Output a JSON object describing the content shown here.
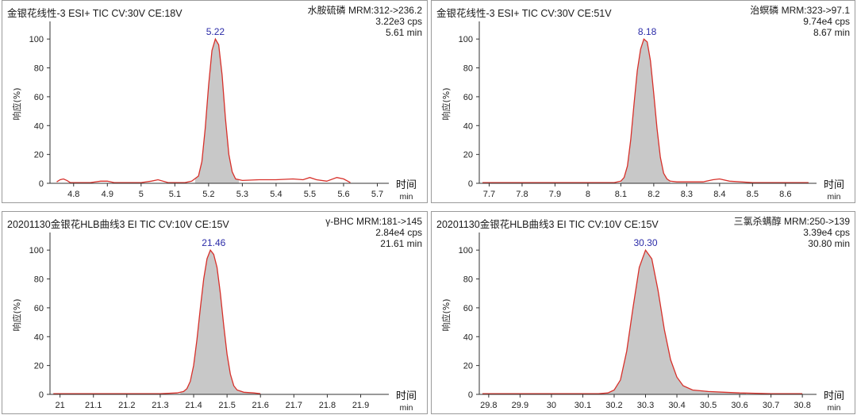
{
  "colors": {
    "trace": "#d7302a",
    "fill": "#c8c8c8",
    "axis": "#333333",
    "peak_label": "#2b2ba8"
  },
  "chart_data": [
    {
      "type": "line",
      "title": "金银花线性-3 ESI+ TIC CV:30V CE:18V",
      "info": [
        "水胺硫磷 MRM:312->236.2",
        "3.22e3 cps",
        "5.61 min"
      ],
      "ylabel": "响应(%)",
      "xlabel_main": "时间",
      "xlabel_unit": "min",
      "xlim": [
        4.73,
        5.72
      ],
      "ylim": [
        0,
        110
      ],
      "xticks": [
        "4.8",
        "4.9",
        "5",
        "5.1",
        "5.2",
        "5.3",
        "5.4",
        "5.5",
        "5.6",
        "5.7"
      ],
      "xtick_values": [
        4.8,
        4.9,
        5.0,
        5.1,
        5.2,
        5.3,
        5.4,
        5.5,
        5.6,
        5.7
      ],
      "yticks": [
        "0",
        "20",
        "40",
        "60",
        "80",
        "100"
      ],
      "ytick_values": [
        0,
        20,
        40,
        60,
        80,
        100
      ],
      "peak_label": "5.22",
      "peak_x": 5.22,
      "x": [
        4.75,
        4.76,
        4.77,
        4.78,
        4.79,
        4.8,
        4.85,
        4.88,
        4.9,
        4.92,
        4.95,
        5.0,
        5.03,
        5.05,
        5.08,
        5.1,
        5.13,
        5.15,
        5.17,
        5.18,
        5.19,
        5.2,
        5.21,
        5.22,
        5.23,
        5.24,
        5.25,
        5.26,
        5.27,
        5.28,
        5.3,
        5.35,
        5.4,
        5.45,
        5.48,
        5.5,
        5.52,
        5.55,
        5.58,
        5.6,
        5.62
      ],
      "y": [
        1,
        2.5,
        3,
        2,
        0.5,
        0.5,
        0.5,
        1.5,
        1.5,
        0.5,
        0.5,
        0.5,
        1.5,
        2.5,
        0.5,
        0.5,
        0.5,
        1.5,
        5,
        15,
        38,
        68,
        92,
        100,
        96,
        75,
        45,
        20,
        8,
        3,
        2,
        2.5,
        2.5,
        3,
        2.5,
        4,
        2.5,
        1.5,
        4,
        3,
        0.5
      ],
      "fill_range": [
        5.16,
        5.29
      ]
    },
    {
      "type": "line",
      "title": "金银花线性-3 ESI+ TIC CV:30V CE:51V",
      "info": [
        "治螟磷 MRM:323->97.1",
        "9.74e4 cps",
        "8.67 min"
      ],
      "ylabel": "响应(%)",
      "xlabel_main": "时间",
      "xlabel_unit": "min",
      "xlim": [
        7.67,
        8.68
      ],
      "ylim": [
        0,
        110
      ],
      "xticks": [
        "7.7",
        "7.8",
        "7.9",
        "8",
        "8.1",
        "8.2",
        "8.3",
        "8.4",
        "8.5",
        "8.6"
      ],
      "xtick_values": [
        7.7,
        7.8,
        7.9,
        8.0,
        8.1,
        8.2,
        8.3,
        8.4,
        8.5,
        8.6
      ],
      "yticks": [
        "0",
        "20",
        "40",
        "60",
        "80",
        "100"
      ],
      "ytick_values": [
        0,
        20,
        40,
        60,
        80,
        100
      ],
      "peak_label": "8.18",
      "peak_x": 8.18,
      "x": [
        7.68,
        7.8,
        7.9,
        8.0,
        8.05,
        8.08,
        8.1,
        8.11,
        8.12,
        8.13,
        8.14,
        8.15,
        8.16,
        8.17,
        8.18,
        8.19,
        8.2,
        8.21,
        8.22,
        8.23,
        8.24,
        8.25,
        8.27,
        8.3,
        8.35,
        8.38,
        8.4,
        8.43,
        8.5,
        8.6,
        8.67
      ],
      "y": [
        0.5,
        0.5,
        0.5,
        0.5,
        0.5,
        0.5,
        1.5,
        4,
        12,
        30,
        55,
        78,
        93,
        100,
        98,
        85,
        62,
        38,
        18,
        7,
        3,
        1.5,
        1,
        1,
        1,
        2.5,
        3,
        1.5,
        0.5,
        0.5,
        0.5
      ],
      "fill_range": [
        8.1,
        8.25
      ]
    },
    {
      "type": "line",
      "title": "20201130金银花HLB曲线3 EI TIC CV:10V CE:15V",
      "info": [
        "γ-BHC MRM:181->145",
        "2.84e4 cps",
        "21.61 min"
      ],
      "ylabel": "响应(%)",
      "xlabel_main": "时间",
      "xlabel_unit": "min",
      "xlim": [
        20.97,
        21.97
      ],
      "ylim": [
        0,
        110
      ],
      "xticks": [
        "21",
        "21.1",
        "21.2",
        "21.3",
        "21.4",
        "21.5",
        "21.6",
        "21.7",
        "21.8",
        "21.9"
      ],
      "xtick_values": [
        21.0,
        21.1,
        21.2,
        21.3,
        21.4,
        21.5,
        21.6,
        21.7,
        21.8,
        21.9
      ],
      "yticks": [
        "0",
        "20",
        "40",
        "60",
        "80",
        "100"
      ],
      "ytick_values": [
        0,
        20,
        40,
        60,
        80,
        100
      ],
      "peak_label": "21.46",
      "peak_x": 21.46,
      "x": [
        20.98,
        21.1,
        21.2,
        21.3,
        21.35,
        21.37,
        21.38,
        21.39,
        21.4,
        21.41,
        21.42,
        21.43,
        21.44,
        21.45,
        21.46,
        21.47,
        21.48,
        21.49,
        21.5,
        21.51,
        21.52,
        21.53,
        21.55,
        21.58,
        21.6
      ],
      "y": [
        0.5,
        0.5,
        0.5,
        0.5,
        1,
        2,
        4,
        9,
        20,
        38,
        60,
        80,
        94,
        100,
        97,
        88,
        70,
        48,
        28,
        14,
        6,
        3,
        1.5,
        1,
        0.5
      ],
      "fill_range": [
        21.36,
        21.6
      ]
    },
    {
      "type": "line",
      "title": "20201130金银花HLB曲线3 EI TIC CV:10V CE:15V",
      "info": [
        "三氯杀螨醇 MRM:250->139",
        "3.39e4 cps",
        "30.80 min"
      ],
      "ylabel": "响应(%)",
      "xlabel_main": "时间",
      "xlabel_unit": "min",
      "xlim": [
        29.77,
        30.83
      ],
      "ylim": [
        0,
        110
      ],
      "xticks": [
        "29.8",
        "29.9",
        "30",
        "30.1",
        "30.2",
        "30.3",
        "30.4",
        "30.5",
        "30.6",
        "30.7",
        "30.8"
      ],
      "xtick_values": [
        29.8,
        29.9,
        30.0,
        30.1,
        30.2,
        30.3,
        30.4,
        30.5,
        30.6,
        30.7,
        30.8
      ],
      "yticks": [
        "0",
        "20",
        "40",
        "60",
        "80",
        "100"
      ],
      "ytick_values": [
        0,
        20,
        40,
        60,
        80,
        100
      ],
      "peak_label": "30.30",
      "peak_x": 30.3,
      "x": [
        29.78,
        29.9,
        30.0,
        30.1,
        30.15,
        30.18,
        30.2,
        30.22,
        30.24,
        30.26,
        30.28,
        30.3,
        30.32,
        30.34,
        30.36,
        30.38,
        30.4,
        30.42,
        30.45,
        30.5,
        30.55,
        30.6,
        30.7,
        30.8
      ],
      "y": [
        0.5,
        0.5,
        0.5,
        0.5,
        0.5,
        1,
        3,
        10,
        30,
        60,
        88,
        100,
        94,
        72,
        45,
        24,
        12,
        6,
        3,
        2,
        1.5,
        1,
        0.5,
        0.5
      ],
      "fill_range": [
        30.16,
        30.62
      ]
    }
  ]
}
